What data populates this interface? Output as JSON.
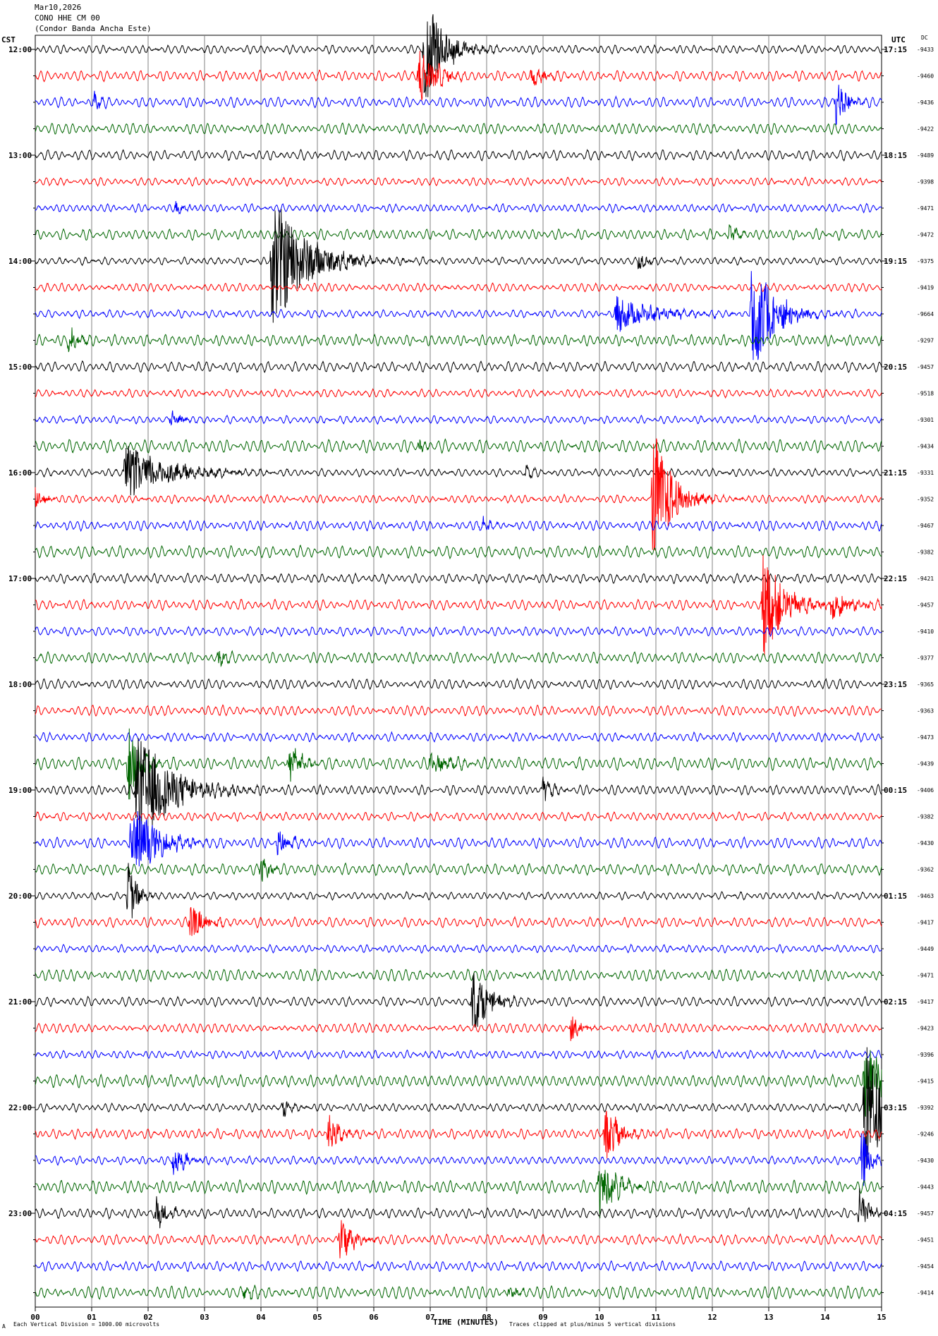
{
  "header": {
    "date": "Mar10,2026",
    "station": "CONO HHE CM 00",
    "site": "(Condor Banda Ancha Este)"
  },
  "footer": {
    "scale_note": "Each Vertical Division = 1000.00 microvolts",
    "clip_note": "Traces clipped at plus/minus 5 vertical divisions",
    "corner_mark": "A"
  },
  "chart_data": {
    "type": "line",
    "title": "",
    "xlabel": "TIME (MINUTES)",
    "left_label": "CST",
    "right_label": "UTC",
    "dc_label": "DC",
    "xlim": [
      0,
      15
    ],
    "x_ticks": [
      "00",
      "01",
      "02",
      "03",
      "04",
      "05",
      "06",
      "07",
      "08",
      "09",
      "10",
      "11",
      "12",
      "13",
      "14",
      "15"
    ],
    "grid": "vertical lines every minute",
    "trace_colors": [
      "#000000",
      "#ff0000",
      "#0000ff",
      "#006600"
    ],
    "rows_per_hour": 4,
    "minutes_per_row": 15,
    "left_time_labels": [
      "12:00",
      "13:00",
      "14:00",
      "15:00",
      "16:00",
      "17:00",
      "18:00",
      "19:00",
      "20:00",
      "21:00",
      "22:00",
      "23:00"
    ],
    "right_time_labels": [
      "17:15",
      "18:15",
      "19:15",
      "20:15",
      "21:15",
      "22:15",
      "23:15",
      "00:15",
      "01:15",
      "02:15",
      "03:15",
      "04:15"
    ],
    "dc_values": [
      -9433,
      -9460,
      -9436,
      -9422,
      -9489,
      -9398,
      -9471,
      -9472,
      -9375,
      -9419,
      -9664,
      -9297,
      -9457,
      -9518,
      -9301,
      -9434,
      -9331,
      -9352,
      -9467,
      -9382,
      -9421,
      -9457,
      -9410,
      -9377,
      -9365,
      -9363,
      -9473,
      -9439,
      -9406,
      -9382,
      -9430,
      -9362,
      -9463,
      -9417,
      -9449,
      -9471,
      -9417,
      -9423,
      -9396,
      -9415,
      -9392,
      -9246,
      -9430,
      -9443,
      -9457,
      -9451,
      -9454,
      -9414
    ],
    "events": [
      {
        "row": 0,
        "minute": 6.9,
        "amplitude": 4.0,
        "duration": 0.7
      },
      {
        "row": 1,
        "minute": 6.8,
        "amplitude": 2.2,
        "duration": 0.6
      },
      {
        "row": 1,
        "minute": 8.8,
        "amplitude": 0.8,
        "duration": 0.4
      },
      {
        "row": 2,
        "minute": 1.05,
        "amplitude": 0.6,
        "duration": 0.2
      },
      {
        "row": 2,
        "minute": 14.2,
        "amplitude": 1.6,
        "duration": 0.4
      },
      {
        "row": 6,
        "minute": 2.5,
        "amplitude": 0.5,
        "duration": 0.3
      },
      {
        "row": 7,
        "minute": 12.3,
        "amplitude": 0.7,
        "duration": 0.3
      },
      {
        "row": 8,
        "minute": 4.2,
        "amplitude": 5.0,
        "duration": 1.2
      },
      {
        "row": 8,
        "minute": 10.7,
        "amplitude": 0.7,
        "duration": 0.3
      },
      {
        "row": 10,
        "minute": 10.3,
        "amplitude": 1.2,
        "duration": 1.3
      },
      {
        "row": 10,
        "minute": 12.7,
        "amplitude": 4.5,
        "duration": 0.8
      },
      {
        "row": 11,
        "minute": 0.6,
        "amplitude": 1.0,
        "duration": 0.3
      },
      {
        "row": 14,
        "minute": 2.4,
        "amplitude": 0.8,
        "duration": 0.3
      },
      {
        "row": 15,
        "minute": 6.8,
        "amplitude": 0.5,
        "duration": 0.2
      },
      {
        "row": 16,
        "minute": 1.6,
        "amplitude": 2.0,
        "duration": 1.5
      },
      {
        "row": 16,
        "minute": 8.7,
        "amplitude": 0.5,
        "duration": 0.3
      },
      {
        "row": 17,
        "minute": 0.0,
        "amplitude": 0.9,
        "duration": 0.3
      },
      {
        "row": 17,
        "minute": 10.95,
        "amplitude": 5.0,
        "duration": 0.7
      },
      {
        "row": 18,
        "minute": 7.9,
        "amplitude": 0.6,
        "duration": 0.3
      },
      {
        "row": 21,
        "minute": 12.9,
        "amplitude": 3.6,
        "duration": 0.8
      },
      {
        "row": 21,
        "minute": 14.1,
        "amplitude": 0.9,
        "duration": 0.9
      },
      {
        "row": 23,
        "minute": 3.25,
        "amplitude": 0.6,
        "duration": 0.3
      },
      {
        "row": 27,
        "minute": 4.5,
        "amplitude": 1.2,
        "duration": 0.5
      },
      {
        "row": 27,
        "minute": 7.0,
        "amplitude": 0.7,
        "duration": 0.8
      },
      {
        "row": 27,
        "minute": 1.65,
        "amplitude": 3.0,
        "duration": 0.4
      },
      {
        "row": 28,
        "minute": 1.8,
        "amplitude": 4.0,
        "duration": 1.3
      },
      {
        "row": 28,
        "minute": 9.0,
        "amplitude": 0.9,
        "duration": 0.3
      },
      {
        "row": 30,
        "minute": 1.7,
        "amplitude": 3.0,
        "duration": 0.9
      },
      {
        "row": 30,
        "minute": 4.3,
        "amplitude": 1.0,
        "duration": 0.4
      },
      {
        "row": 31,
        "minute": 4.0,
        "amplitude": 0.9,
        "duration": 0.3
      },
      {
        "row": 32,
        "minute": 1.65,
        "amplitude": 2.5,
        "duration": 0.3
      },
      {
        "row": 33,
        "minute": 2.75,
        "amplitude": 1.3,
        "duration": 0.5
      },
      {
        "row": 36,
        "minute": 7.75,
        "amplitude": 2.2,
        "duration": 0.6
      },
      {
        "row": 37,
        "minute": 9.5,
        "amplitude": 1.0,
        "duration": 0.3
      },
      {
        "row": 39,
        "minute": 14.7,
        "amplitude": 3.5,
        "duration": 0.5
      },
      {
        "row": 40,
        "minute": 14.7,
        "amplitude": 5.0,
        "duration": 0.8
      },
      {
        "row": 40,
        "minute": 4.4,
        "amplitude": 0.6,
        "duration": 0.3
      },
      {
        "row": 41,
        "minute": 5.2,
        "amplitude": 1.4,
        "duration": 0.4
      },
      {
        "row": 41,
        "minute": 10.1,
        "amplitude": 2.0,
        "duration": 0.5
      },
      {
        "row": 42,
        "minute": 2.45,
        "amplitude": 1.1,
        "duration": 0.4
      },
      {
        "row": 42,
        "minute": 14.65,
        "amplitude": 2.5,
        "duration": 0.3
      },
      {
        "row": 43,
        "minute": 10.0,
        "amplitude": 2.0,
        "duration": 0.6
      },
      {
        "row": 44,
        "minute": 2.15,
        "amplitude": 1.1,
        "duration": 0.4
      },
      {
        "row": 44,
        "minute": 14.6,
        "amplitude": 2.0,
        "duration": 0.3
      },
      {
        "row": 45,
        "minute": 5.4,
        "amplitude": 1.5,
        "duration": 0.5
      },
      {
        "row": 47,
        "minute": 3.7,
        "amplitude": 0.6,
        "duration": 0.3
      },
      {
        "row": 47,
        "minute": 8.4,
        "amplitude": 0.6,
        "duration": 0.3
      }
    ]
  }
}
